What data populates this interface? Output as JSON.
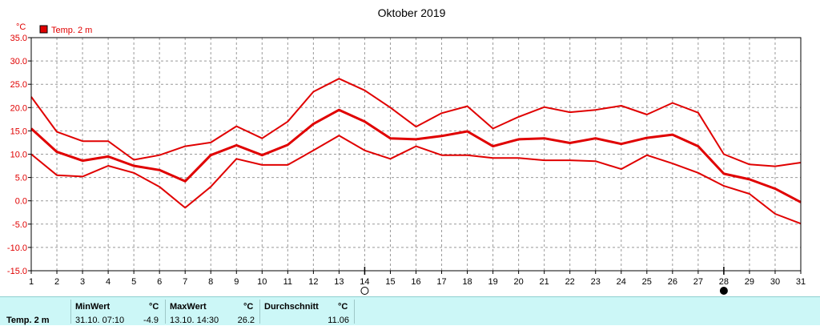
{
  "chart_data": {
    "type": "line",
    "title": "Oktober 2019",
    "ylabel": "°C",
    "legend": "Temp. 2 m",
    "legend_position": "top-left",
    "grid": true,
    "xlim": [
      1,
      31
    ],
    "ylim": [
      -15,
      35
    ],
    "x": [
      1,
      2,
      3,
      4,
      5,
      6,
      7,
      8,
      9,
      10,
      11,
      12,
      13,
      14,
      15,
      16,
      17,
      18,
      19,
      20,
      21,
      22,
      23,
      24,
      25,
      26,
      27,
      28,
      29,
      30,
      31
    ],
    "yticks": [
      "-15.0",
      "-10.0",
      "-5.0",
      "0.0",
      "5.0",
      "10.0",
      "15.0",
      "20.0",
      "25.0",
      "30.0",
      "35.0"
    ],
    "xticks": [
      "1",
      "2",
      "3",
      "4",
      "5",
      "6",
      "7",
      "8",
      "9",
      "10",
      "11",
      "12",
      "13",
      "14",
      "15",
      "16",
      "17",
      "18",
      "19",
      "20",
      "21",
      "22",
      "23",
      "24",
      "25",
      "26",
      "27",
      "28",
      "29",
      "30",
      "31"
    ],
    "series": [
      {
        "role": "max",
        "values": [
          22.3,
          14.8,
          12.8,
          12.8,
          8.8,
          9.8,
          11.7,
          12.5,
          16.0,
          13.4,
          17.0,
          23.4,
          26.2,
          23.7,
          20.0,
          15.9,
          18.8,
          20.3,
          15.5,
          18.0,
          20.1,
          19.0,
          19.5,
          20.4,
          18.5,
          21.0,
          18.9,
          10.0,
          7.8,
          7.4,
          8.2
        ]
      },
      {
        "role": "mean",
        "values": [
          15.5,
          10.5,
          8.6,
          9.5,
          7.5,
          6.6,
          4.2,
          9.8,
          11.9,
          9.8,
          12.0,
          16.5,
          19.5,
          17.0,
          13.4,
          13.2,
          13.9,
          14.9,
          11.7,
          13.2,
          13.4,
          12.4,
          13.4,
          12.2,
          13.5,
          14.2,
          11.7,
          5.8,
          4.6,
          2.6,
          -0.3
        ]
      },
      {
        "role": "min",
        "values": [
          10.0,
          5.5,
          5.2,
          7.5,
          6.0,
          3.0,
          -1.5,
          3.0,
          9.0,
          7.7,
          7.7,
          10.8,
          14.0,
          10.8,
          9.0,
          11.7,
          9.8,
          9.8,
          9.2,
          9.2,
          8.7,
          8.7,
          8.5,
          6.8,
          9.8,
          8.0,
          6.0,
          3.2,
          1.5,
          -2.8,
          -4.9
        ]
      }
    ],
    "colors": {
      "line": "#e00000",
      "axis": "#000000",
      "grid": "#999999",
      "footer": "#ccf7f7"
    },
    "moon_phases": [
      {
        "day": 14,
        "phase": "full-moon"
      },
      {
        "day": 28,
        "phase": "new-moon"
      }
    ]
  },
  "footer": {
    "row_label": "Temp. 2 m",
    "min_label": "MinWert",
    "min_unit": "°C",
    "min_datetime": "31.10.  07:10",
    "min_value": "-4.9",
    "max_label": "MaxWert",
    "max_unit": "°C",
    "max_datetime": "13.10.  14:30",
    "max_value": "26.2",
    "avg_label": "Durchschnitt",
    "avg_unit": "°C",
    "avg_value": "11.06"
  }
}
